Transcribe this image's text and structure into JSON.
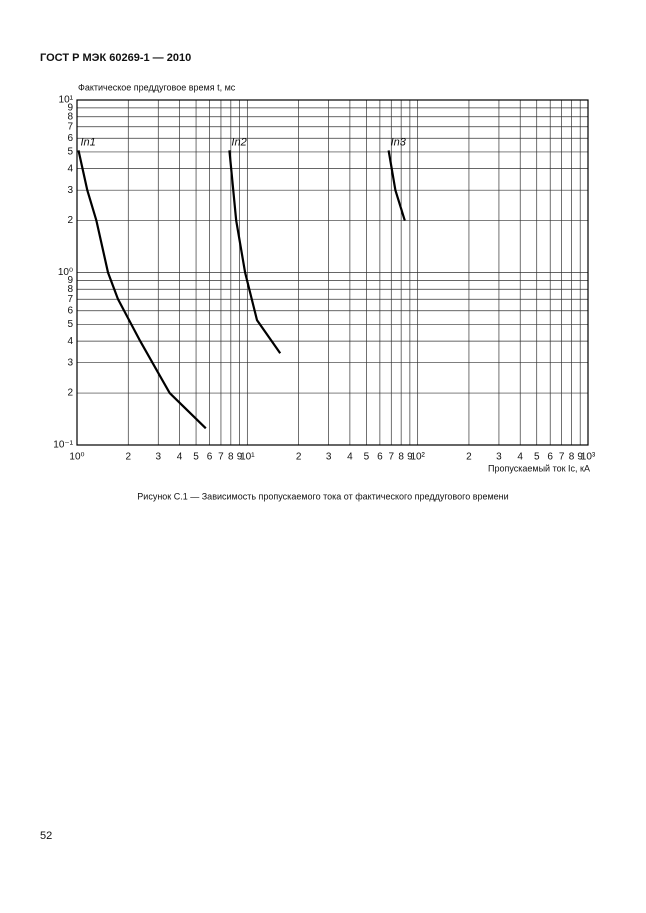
{
  "header": {
    "title": "ГОСТ Р МЭК 60269-1 — 2010"
  },
  "chart_data": {
    "type": "line",
    "ylabel": "Фактическое преддуговое время t, мс",
    "xlabel": "Пропускаемый ток Ic, кА",
    "xlog": true,
    "ylog": true,
    "grid": true,
    "xlim": [
      1,
      1000
    ],
    "ylim": [
      0.1,
      10
    ],
    "xticks": [
      {
        "value": 1,
        "label": "10⁰"
      },
      2,
      3,
      4,
      5,
      6,
      7,
      8,
      9,
      {
        "value": 10,
        "label": "10¹"
      },
      {
        "value": 20,
        "label": "2"
      },
      {
        "value": 30,
        "label": "3"
      },
      {
        "value": 40,
        "label": "4"
      },
      {
        "value": 50,
        "label": "5"
      },
      {
        "value": 60,
        "label": "6"
      },
      {
        "value": 70,
        "label": "7"
      },
      {
        "value": 80,
        "label": "8"
      },
      {
        "value": 90,
        "label": "9"
      },
      {
        "value": 100,
        "label": "10²"
      },
      {
        "value": 200,
        "label": "2"
      },
      {
        "value": 300,
        "label": "3"
      },
      {
        "value": 400,
        "label": "4"
      },
      {
        "value": 500,
        "label": "5"
      },
      {
        "value": 600,
        "label": "6"
      },
      {
        "value": 700,
        "label": "7"
      },
      {
        "value": 800,
        "label": "8"
      },
      {
        "value": 900,
        "label": "9"
      },
      {
        "value": 1000,
        "label": "10³"
      }
    ],
    "yticks": [
      {
        "value": 0.1,
        "label": "10⁻¹"
      },
      {
        "value": 0.2,
        "label": "2"
      },
      {
        "value": 0.3,
        "label": "3"
      },
      {
        "value": 0.4,
        "label": "4"
      },
      {
        "value": 0.5,
        "label": "5"
      },
      {
        "value": 0.6,
        "label": "6"
      },
      {
        "value": 0.7,
        "label": "7"
      },
      {
        "value": 0.8,
        "label": "8"
      },
      {
        "value": 0.9,
        "label": "9"
      },
      {
        "value": 1,
        "label": "10⁰"
      },
      2,
      3,
      4,
      5,
      6,
      7,
      8,
      9,
      {
        "value": 10,
        "label": "10¹"
      }
    ],
    "series": [
      {
        "name": "In1",
        "color": "#000000",
        "x": [
          1.02,
          1.15,
          1.3,
          1.52,
          1.74,
          2.35,
          3.5,
          5.7
        ],
        "values": [
          5.1,
          3,
          2,
          1,
          0.7,
          0.4,
          0.2,
          0.125
        ]
      },
      {
        "name": "In2",
        "color": "#000000",
        "x": [
          7.85,
          8.6,
          9.7,
          11.4,
          15.6
        ],
        "values": [
          5.1,
          2,
          1,
          0.53,
          0.34
        ]
      },
      {
        "name": "In3",
        "color": "#000000",
        "x": [
          67.5,
          74,
          84
        ],
        "values": [
          5.1,
          3,
          2
        ]
      }
    ]
  },
  "caption": "Рисунок С.1 — Зависимость пропускаемого тока от фактического преддугового времени",
  "page_number": "52"
}
